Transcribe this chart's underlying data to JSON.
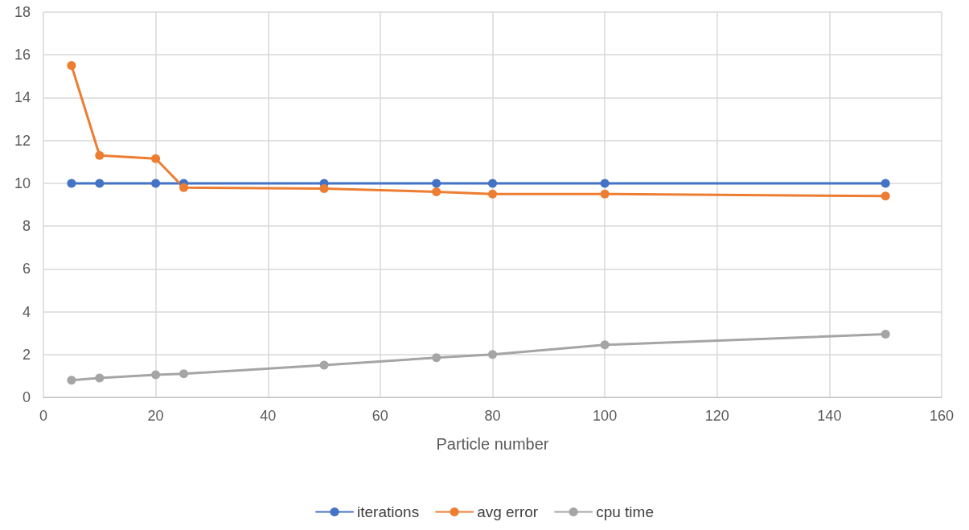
{
  "chart_data": {
    "type": "line",
    "xlabel": "Particle number",
    "x": [
      5,
      10,
      20,
      25,
      50,
      70,
      80,
      100,
      150
    ],
    "series": [
      {
        "name": "iterations",
        "color": "#4472c4",
        "values": [
          10,
          10,
          10,
          10,
          10,
          10,
          10,
          10,
          10
        ]
      },
      {
        "name": "avg error",
        "color": "#ed7d31",
        "values": [
          15.5,
          11.3,
          11.15,
          9.8,
          9.75,
          9.6,
          9.5,
          9.5,
          9.4
        ]
      },
      {
        "name": "cpu time",
        "color": "#a5a5a5",
        "values": [
          0.8,
          0.9,
          1.05,
          1.1,
          1.5,
          1.85,
          2.0,
          2.45,
          2.95
        ]
      }
    ],
    "xlim": [
      0,
      160
    ],
    "xticks": [
      0,
      20,
      40,
      60,
      80,
      100,
      120,
      140,
      160
    ],
    "ylim": [
      0,
      18
    ],
    "yticks": [
      0,
      2,
      4,
      6,
      8,
      10,
      12,
      14,
      16,
      18
    ],
    "grid": true,
    "legend": "bottom",
    "marker": "circle",
    "line_style": "solid"
  }
}
